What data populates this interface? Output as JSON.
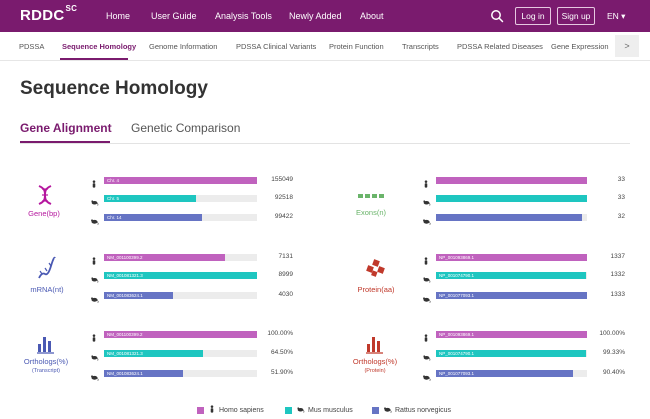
{
  "topnav": {
    "logo": "RDDC",
    "logo_sup": "SC",
    "items": [
      "Home",
      "User Guide",
      "Analysis Tools",
      "Newly Added",
      "About"
    ],
    "login_label": "Log in",
    "signup_label": "Sign up",
    "lang_label": "EN ▾"
  },
  "subnav": {
    "items": [
      "PDSSA",
      "Sequence Homology",
      "Genome Information",
      "PDSSA Clinical Variants",
      "Protein Function",
      "Transcripts",
      "PDSSA Related Diseases",
      "Gene Expression"
    ],
    "active_index": 1,
    "more_label": ">"
  },
  "page_title": "Sequence Homology",
  "tabs": [
    "Gene Alignment",
    "Genetic Comparison"
  ],
  "colors": {
    "human": "#c062be",
    "mouse": "#1ec6c0",
    "rat": "#6674c4",
    "brand": "#7a1b6e",
    "exon": "#6ab46a",
    "protein": "#c0392b",
    "track": "#ececec"
  },
  "panels": [
    {
      "label": "Gene(bp)",
      "sublabel": "",
      "icon": "dna-icon",
      "rows": [
        {
          "species": "human",
          "bar_label": "Chr. 4",
          "value": "155049",
          "fraction": 1.0
        },
        {
          "species": "mouse",
          "bar_label": "Chr. 5",
          "value": "92518",
          "fraction": 0.6
        },
        {
          "species": "rat",
          "bar_label": "Chr. 14",
          "value": "99422",
          "fraction": 0.64
        }
      ]
    },
    {
      "label": "Exons(n)",
      "sublabel": "",
      "icon": "exons-icon",
      "rows": [
        {
          "species": "human",
          "bar_label": "",
          "value": "33",
          "fraction": 1.0
        },
        {
          "species": "mouse",
          "bar_label": "",
          "value": "33",
          "fraction": 1.0
        },
        {
          "species": "rat",
          "bar_label": "",
          "value": "32",
          "fraction": 0.97
        }
      ]
    },
    {
      "label": "mRNA(nt)",
      "sublabel": "",
      "icon": "mrna-icon",
      "rows": [
        {
          "species": "human",
          "bar_label": "NM_001100399.2",
          "value": "7131",
          "fraction": 0.79
        },
        {
          "species": "mouse",
          "bar_label": "NM_001081321.3",
          "value": "8999",
          "fraction": 1.0
        },
        {
          "species": "rat",
          "bar_label": "NM_001083624.1",
          "value": "4030",
          "fraction": 0.45
        }
      ]
    },
    {
      "label": "Protein(aa)",
      "sublabel": "",
      "icon": "protein-icon",
      "rows": [
        {
          "species": "human",
          "bar_label": "NP_001093869.1",
          "value": "1337",
          "fraction": 1.0
        },
        {
          "species": "mouse",
          "bar_label": "NP_001074790.1",
          "value": "1332",
          "fraction": 0.996
        },
        {
          "species": "rat",
          "bar_label": "NP_001077093.1",
          "value": "1333",
          "fraction": 0.997
        }
      ]
    },
    {
      "label": "Orthologs(%)",
      "sublabel": "(Transcript)",
      "icon": "orthologs-transcript-icon",
      "rows": [
        {
          "species": "human",
          "bar_label": "NM_001100399.2",
          "value": "100.00%",
          "fraction": 1.0
        },
        {
          "species": "mouse",
          "bar_label": "NM_001081321.3",
          "value": "64.50%",
          "fraction": 0.645
        },
        {
          "species": "rat",
          "bar_label": "NM_001083624.1",
          "value": "51.90%",
          "fraction": 0.519
        }
      ]
    },
    {
      "label": "Orthologs(%)",
      "sublabel": "(Protein)",
      "icon": "orthologs-protein-icon",
      "rows": [
        {
          "species": "human",
          "bar_label": "NP_001093869.1",
          "value": "100.00%",
          "fraction": 1.0
        },
        {
          "species": "mouse",
          "bar_label": "NP_001074790.1",
          "value": "99.33%",
          "fraction": 0.9933
        },
        {
          "species": "rat",
          "bar_label": "NP_001077093.1",
          "value": "90.40%",
          "fraction": 0.904
        }
      ]
    }
  ],
  "legend": [
    {
      "species": "human",
      "label": "Homo sapiens"
    },
    {
      "species": "mouse",
      "label": "Mus musculus"
    },
    {
      "species": "rat",
      "label": "Rattus norvegicus"
    }
  ]
}
